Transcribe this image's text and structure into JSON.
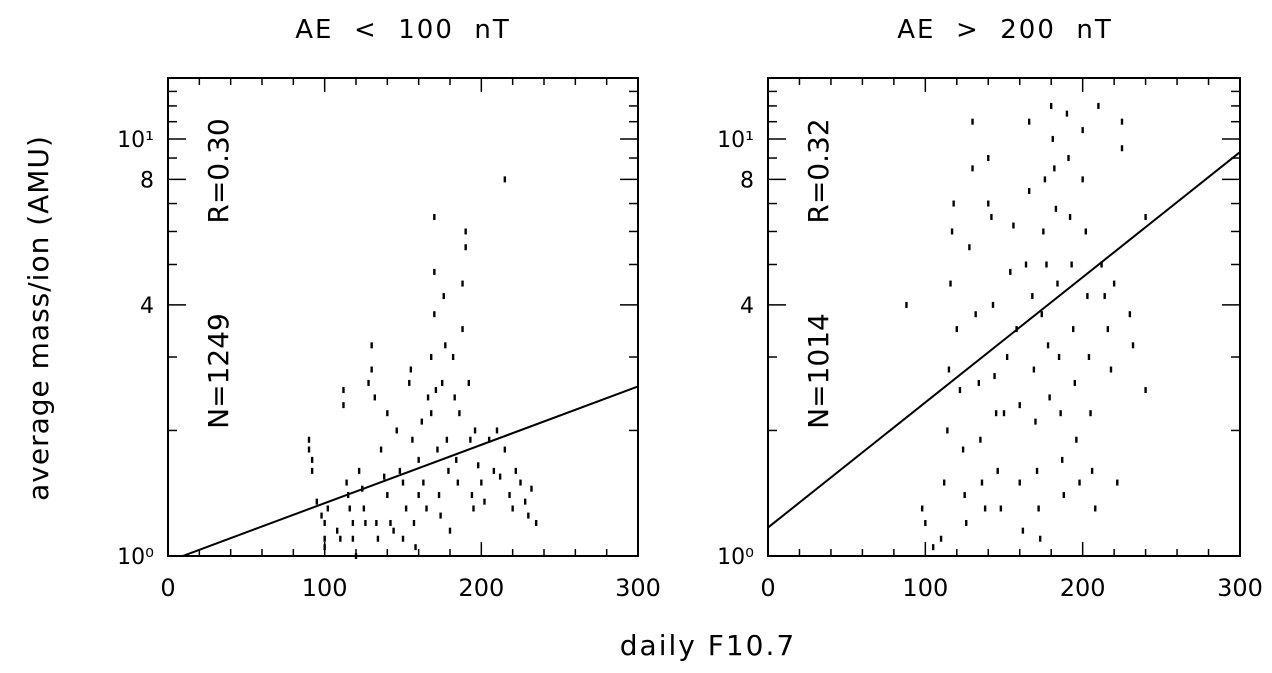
{
  "figure": {
    "ylabel": "average mass/ion    (AMU)",
    "xlabel": "daily F10.7"
  },
  "chart_data": [
    {
      "type": "scatter",
      "title": "AE  <  100  nT",
      "annotations": {
        "n": "N=1249",
        "r": "R=0.30"
      },
      "xlim": [
        0,
        300
      ],
      "ylim": [
        1,
        14
      ],
      "yscale": "log",
      "xticks": [
        0,
        100,
        200,
        300
      ],
      "yticks": [
        {
          "value": 1,
          "label": "10⁰"
        },
        {
          "value": 4,
          "label": "4"
        },
        {
          "value": 8,
          "label": "8"
        },
        {
          "value": 10,
          "label": "10¹"
        }
      ],
      "fit_line": {
        "x": [
          0,
          300
        ],
        "y": [
          0.97,
          2.55
        ]
      },
      "points": [
        [
          90,
          1.9
        ],
        [
          90,
          1.8
        ],
        [
          92,
          1.7
        ],
        [
          92,
          1.6
        ],
        [
          95,
          1.35
        ],
        [
          98,
          1.25
        ],
        [
          100,
          1.2
        ],
        [
          100,
          1.1
        ],
        [
          100,
          1.05
        ],
        [
          102,
          1.3
        ],
        [
          108,
          1.15
        ],
        [
          110,
          1.1
        ],
        [
          112,
          2.5
        ],
        [
          112,
          2.3
        ],
        [
          114,
          1.5
        ],
        [
          115,
          1.4
        ],
        [
          116,
          1.3
        ],
        [
          118,
          1.2
        ],
        [
          118,
          1.1
        ],
        [
          120,
          1.0
        ],
        [
          122,
          1.6
        ],
        [
          124,
          1.45
        ],
        [
          125,
          1.3
        ],
        [
          126,
          1.2
        ],
        [
          128,
          2.6
        ],
        [
          130,
          3.2
        ],
        [
          130,
          2.8
        ],
        [
          132,
          2.4
        ],
        [
          133,
          1.2
        ],
        [
          134,
          1.1
        ],
        [
          136,
          1.8
        ],
        [
          138,
          1.55
        ],
        [
          140,
          1.4
        ],
        [
          140,
          2.2
        ],
        [
          142,
          1.2
        ],
        [
          144,
          1.15
        ],
        [
          146,
          2.0
        ],
        [
          148,
          1.6
        ],
        [
          150,
          1.5
        ],
        [
          150,
          1.1
        ],
        [
          152,
          1.3
        ],
        [
          154,
          2.6
        ],
        [
          155,
          2.8
        ],
        [
          156,
          1.9
        ],
        [
          157,
          1.2
        ],
        [
          158,
          1.05
        ],
        [
          160,
          1.7
        ],
        [
          160,
          1.4
        ],
        [
          162,
          2.1
        ],
        [
          163,
          1.5
        ],
        [
          165,
          1.3
        ],
        [
          166,
          2.4
        ],
        [
          168,
          3.0
        ],
        [
          168,
          2.2
        ],
        [
          170,
          4.8
        ],
        [
          170,
          6.5
        ],
        [
          170,
          3.8
        ],
        [
          171,
          2.5
        ],
        [
          172,
          1.8
        ],
        [
          173,
          1.4
        ],
        [
          174,
          1.25
        ],
        [
          175,
          2.6
        ],
        [
          176,
          4.2
        ],
        [
          177,
          3.2
        ],
        [
          178,
          1.9
        ],
        [
          179,
          1.6
        ],
        [
          180,
          1.15
        ],
        [
          182,
          3.0
        ],
        [
          183,
          2.4
        ],
        [
          184,
          1.7
        ],
        [
          185,
          1.5
        ],
        [
          186,
          2.2
        ],
        [
          188,
          4.5
        ],
        [
          188,
          3.5
        ],
        [
          190,
          6.0
        ],
        [
          190,
          5.5
        ],
        [
          192,
          2.6
        ],
        [
          193,
          1.9
        ],
        [
          194,
          1.4
        ],
        [
          195,
          1.3
        ],
        [
          196,
          2.0
        ],
        [
          198,
          1.65
        ],
        [
          200,
          1.5
        ],
        [
          202,
          1.35
        ],
        [
          205,
          1.9
        ],
        [
          208,
          1.6
        ],
        [
          210,
          2.0
        ],
        [
          212,
          1.55
        ],
        [
          215,
          8.0
        ],
        [
          215,
          1.8
        ],
        [
          218,
          1.4
        ],
        [
          220,
          1.3
        ],
        [
          222,
          1.6
        ],
        [
          225,
          1.5
        ],
        [
          228,
          1.35
        ],
        [
          230,
          1.25
        ],
        [
          232,
          1.45
        ],
        [
          235,
          1.2
        ]
      ]
    },
    {
      "type": "scatter",
      "title": "AE  >  200  nT",
      "annotations": {
        "n": "N=1014",
        "r": "R=0.32"
      },
      "xlim": [
        0,
        300
      ],
      "ylim": [
        1,
        14
      ],
      "yscale": "log",
      "xticks": [
        0,
        100,
        200,
        300
      ],
      "yticks": [
        {
          "value": 1,
          "label": "10⁰"
        },
        {
          "value": 4,
          "label": "4"
        },
        {
          "value": 8,
          "label": "8"
        },
        {
          "value": 10,
          "label": "10¹"
        }
      ],
      "fit_line": {
        "x": [
          0,
          300
        ],
        "y": [
          1.17,
          9.3
        ]
      },
      "points": [
        [
          88,
          4.0
        ],
        [
          98,
          1.3
        ],
        [
          100,
          1.2
        ],
        [
          105,
          1.05
        ],
        [
          110,
          1.1
        ],
        [
          112,
          1.5
        ],
        [
          114,
          2.0
        ],
        [
          115,
          2.8
        ],
        [
          116,
          4.5
        ],
        [
          117,
          6.0
        ],
        [
          118,
          7.0
        ],
        [
          120,
          3.5
        ],
        [
          122,
          2.5
        ],
        [
          124,
          1.8
        ],
        [
          125,
          1.4
        ],
        [
          126,
          1.2
        ],
        [
          128,
          5.5
        ],
        [
          130,
          11.0
        ],
        [
          130,
          8.5
        ],
        [
          132,
          3.8
        ],
        [
          134,
          2.6
        ],
        [
          135,
          1.9
        ],
        [
          136,
          1.5
        ],
        [
          138,
          1.3
        ],
        [
          140,
          9.0
        ],
        [
          140,
          7.0
        ],
        [
          142,
          6.5
        ],
        [
          143,
          4.0
        ],
        [
          144,
          2.7
        ],
        [
          145,
          2.2
        ],
        [
          146,
          1.6
        ],
        [
          148,
          1.3
        ],
        [
          150,
          2.2
        ],
        [
          152,
          3.0
        ],
        [
          154,
          4.8
        ],
        [
          156,
          6.2
        ],
        [
          158,
          3.5
        ],
        [
          160,
          2.3
        ],
        [
          160,
          1.5
        ],
        [
          162,
          1.15
        ],
        [
          164,
          5.0
        ],
        [
          166,
          11.0
        ],
        [
          166,
          7.5
        ],
        [
          168,
          4.2
        ],
        [
          169,
          2.8
        ],
        [
          170,
          2.1
        ],
        [
          171,
          1.6
        ],
        [
          172,
          1.3
        ],
        [
          173,
          1.1
        ],
        [
          174,
          3.8
        ],
        [
          175,
          6.0
        ],
        [
          176,
          8.0
        ],
        [
          177,
          5.0
        ],
        [
          178,
          3.2
        ],
        [
          179,
          2.4
        ],
        [
          180,
          12.0
        ],
        [
          181,
          10.0
        ],
        [
          182,
          8.5
        ],
        [
          183,
          6.8
        ],
        [
          184,
          4.5
        ],
        [
          185,
          3.0
        ],
        [
          186,
          2.2
        ],
        [
          187,
          1.7
        ],
        [
          188,
          1.4
        ],
        [
          190,
          11.5
        ],
        [
          191,
          9.0
        ],
        [
          192,
          6.5
        ],
        [
          193,
          5.0
        ],
        [
          194,
          3.5
        ],
        [
          195,
          2.6
        ],
        [
          196,
          1.9
        ],
        [
          198,
          1.5
        ],
        [
          200,
          10.5
        ],
        [
          200,
          8.0
        ],
        [
          202,
          6.0
        ],
        [
          203,
          4.2
        ],
        [
          204,
          3.0
        ],
        [
          205,
          2.2
        ],
        [
          206,
          1.6
        ],
        [
          208,
          1.3
        ],
        [
          210,
          12.0
        ],
        [
          212,
          5.0
        ],
        [
          214,
          4.2
        ],
        [
          216,
          3.5
        ],
        [
          218,
          2.8
        ],
        [
          220,
          4.5
        ],
        [
          222,
          1.5
        ],
        [
          225,
          11.0
        ],
        [
          225,
          9.5
        ],
        [
          230,
          3.8
        ],
        [
          232,
          3.2
        ],
        [
          240,
          6.5
        ],
        [
          240,
          2.5
        ]
      ]
    }
  ]
}
